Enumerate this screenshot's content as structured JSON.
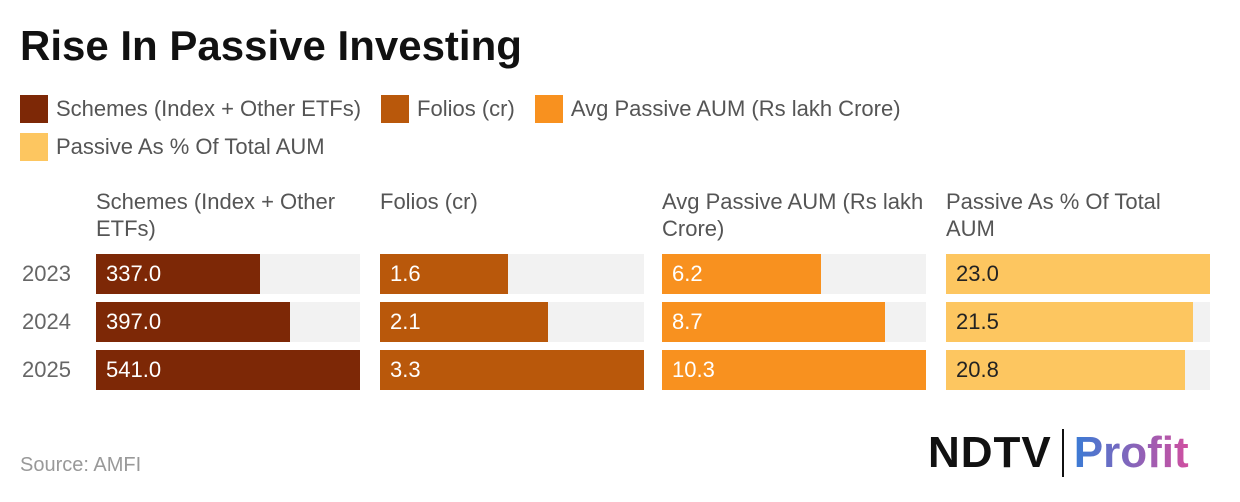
{
  "chart_data": {
    "type": "bar",
    "title": "Rise In Passive Investing",
    "categories": [
      "2023",
      "2024",
      "2025"
    ],
    "series": [
      {
        "name": "Schemes (Index + Other ETFs)",
        "color": "#7d2806",
        "values": [
          337,
          397,
          541
        ],
        "value_labels": [
          "337.0",
          "397.0",
          "541.0"
        ]
      },
      {
        "name": "Folios (cr)",
        "color": "#b9580b",
        "values": [
          1.6,
          2.1,
          3.3
        ],
        "value_labels": [
          "1.6",
          "2.1",
          "3.3"
        ]
      },
      {
        "name": "Avg Passive AUM (Rs lakh Crore)",
        "color": "#f8911f",
        "values": [
          6.2,
          8.7,
          10.3
        ],
        "value_labels": [
          "6.2",
          "8.7",
          "10.3"
        ]
      },
      {
        "name": "Passive As % Of Total AUM",
        "color": "#fdc660",
        "values": [
          23,
          21.5,
          20.8
        ],
        "value_labels": [
          "23.0",
          "21.5",
          "20.8"
        ]
      }
    ]
  },
  "source": "Source: AMFI",
  "logo": {
    "brand": "NDTV",
    "product": "Profit"
  }
}
